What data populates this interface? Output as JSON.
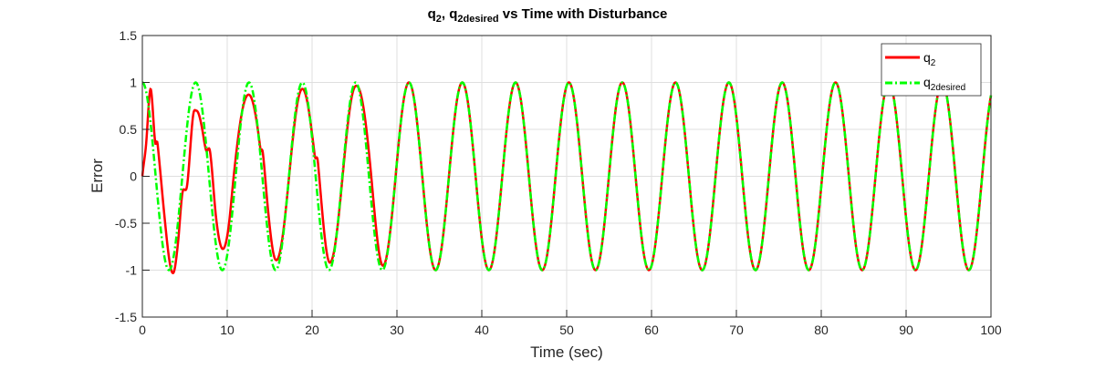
{
  "chart_data": {
    "type": "line",
    "title": {
      "main": "q",
      "sub1": "2",
      "mid": ", q",
      "sub2": "2desired",
      "tail": " vs Time with Disturbance"
    },
    "xlabel": "Time (sec)",
    "ylabel": "Error",
    "xlim": [
      0,
      100
    ],
    "ylim": [
      -1.5,
      1.5
    ],
    "xticks": [
      "0",
      "10",
      "20",
      "30",
      "40",
      "50",
      "60",
      "70",
      "80",
      "90",
      "100"
    ],
    "yticks": [
      "-1.5",
      "-1",
      "-0.5",
      "0",
      "0.5",
      "1",
      "1.5"
    ],
    "grid": true,
    "legend": {
      "position": "top-right",
      "entries": [
        {
          "name": "q",
          "sub": "2"
        },
        {
          "name": "q",
          "sub": "2desired"
        }
      ]
    },
    "series": [
      {
        "name": "q2",
        "color": "#ff0000",
        "style": "solid",
        "description_formula": "tracks cos(t) after ~29 s",
        "keypoints": [
          [
            0,
            0
          ],
          [
            0.43,
            0.33
          ],
          [
            0.97,
            0.93
          ],
          [
            1.5,
            0.37
          ],
          [
            1.8,
            0.34
          ],
          [
            2.6,
            -0.42
          ],
          [
            3.65,
            -1.03
          ],
          [
            4.2,
            -0.71
          ],
          [
            4.7,
            -0.19
          ],
          [
            5.3,
            -0.08
          ],
          [
            6.0,
            0.66
          ],
          [
            6.35,
            0.7
          ],
          [
            7.06,
            0.5
          ],
          [
            7.5,
            0.28
          ],
          [
            8.0,
            0.25
          ],
          [
            8.7,
            -0.45
          ],
          [
            9.4,
            -0.77
          ],
          [
            10.1,
            -0.58
          ],
          [
            10.8,
            0.03
          ],
          [
            12.5,
            0.87
          ],
          [
            13.9,
            0.3
          ],
          [
            14.2,
            0.25
          ],
          [
            14.8,
            -0.35
          ],
          [
            15.7,
            -0.89
          ],
          [
            18.8,
            0.93
          ],
          [
            20.3,
            0.23
          ],
          [
            20.7,
            0.14
          ],
          [
            22.1,
            -0.92
          ],
          [
            25.1,
            0.96
          ],
          [
            26.9,
            0.07
          ],
          [
            28.3,
            -0.95
          ],
          [
            29.5,
            null
          ]
        ]
      },
      {
        "name": "q2desired",
        "color": "#00ff00",
        "style": "dashdot",
        "formula": "cos(t)"
      }
    ]
  }
}
